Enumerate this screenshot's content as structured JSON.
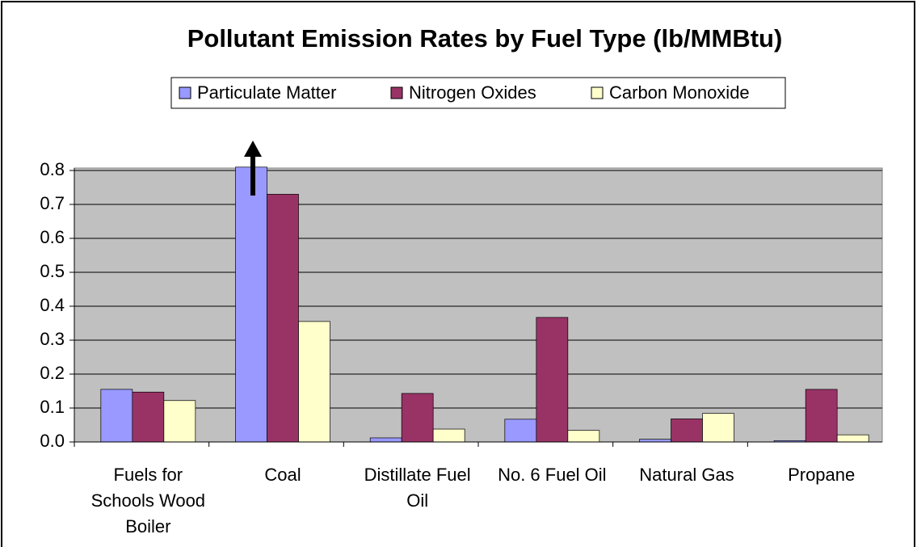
{
  "chart_data": {
    "type": "bar",
    "title": "Pollutant Emission Rates by Fuel Type (lb/MMBtu)",
    "categories": [
      "Fuels for Schools Wood Boiler",
      "Coal",
      "Distillate Fuel Oil",
      "No. 6 Fuel Oil",
      "Natural Gas",
      "Propane"
    ],
    "series": [
      {
        "name": "Particulate Matter",
        "color": "#9999ff",
        "values": [
          0.155,
          0.81,
          0.012,
          0.067,
          0.008,
          0.004
        ]
      },
      {
        "name": "Nitrogen Oxides",
        "color": "#993366",
        "values": [
          0.147,
          0.73,
          0.143,
          0.367,
          0.068,
          0.155
        ]
      },
      {
        "name": "Carbon Monoxide",
        "color": "#ffffcc",
        "values": [
          0.122,
          0.355,
          0.038,
          0.034,
          0.084,
          0.021
        ]
      }
    ],
    "ylim": [
      0,
      0.8
    ],
    "yticks": [
      {
        "value": 0,
        "label": "0.0"
      },
      0.1,
      0.2,
      0.3,
      0.4,
      0.5,
      0.6,
      0.7,
      0.8
    ],
    "grid": true,
    "plot_background": "#c0c0c0",
    "legend": "top"
  }
}
